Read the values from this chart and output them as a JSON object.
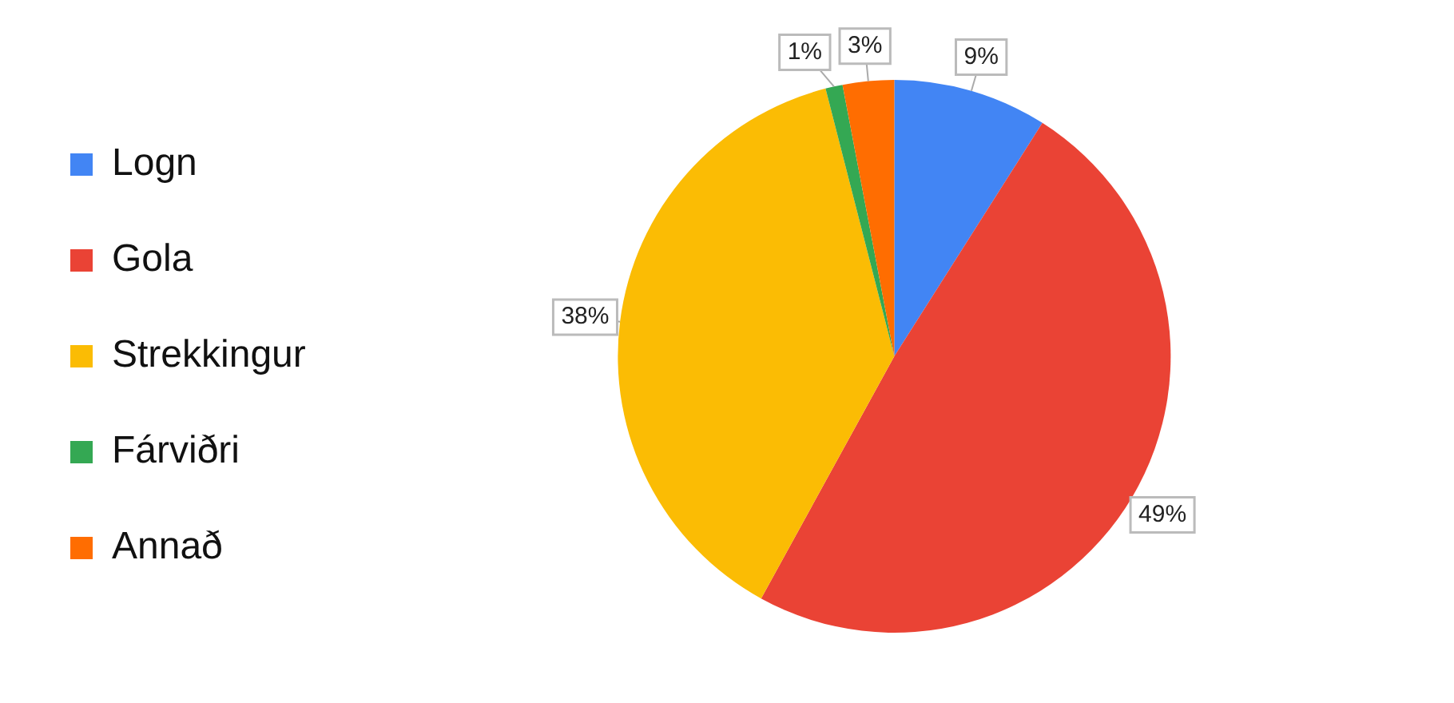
{
  "chart_data": {
    "type": "pie",
    "categories": [
      "Logn",
      "Gola",
      "Strekkingur",
      "Fárviðri",
      "Annað"
    ],
    "values": [
      9,
      49,
      38,
      1,
      3
    ],
    "colors": [
      "#4285f4",
      "#ea4335",
      "#fbbc04",
      "#34a853",
      "#ff6d01"
    ],
    "value_labels": [
      "9%",
      "49%",
      "38%",
      "1%",
      "3%"
    ],
    "legend": "left"
  }
}
